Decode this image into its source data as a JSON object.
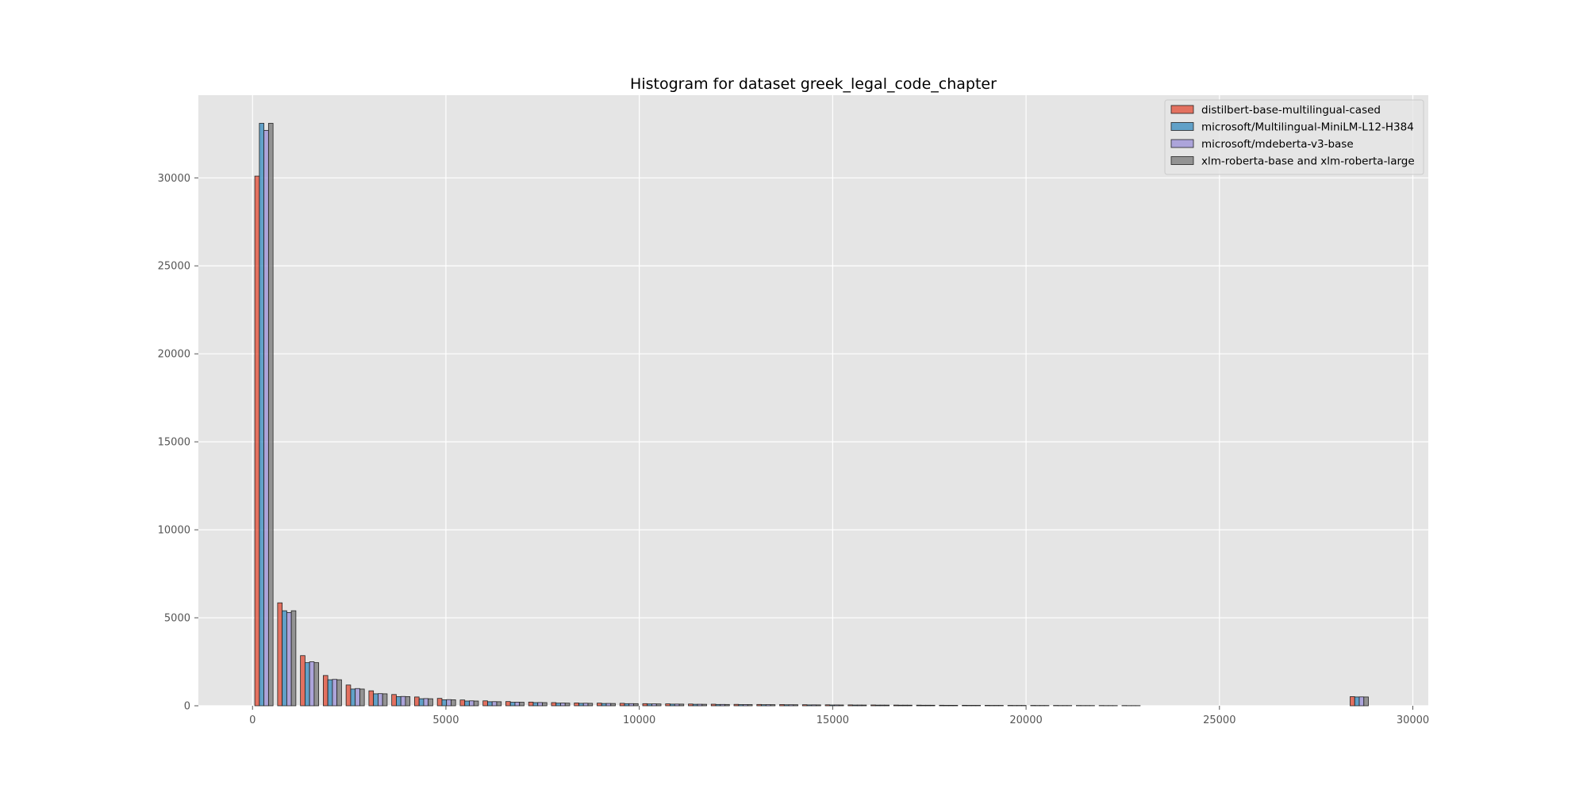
{
  "chart_data": {
    "type": "bar",
    "title": "Histogram for dataset greek_legal_code_chapter",
    "xlabel": "",
    "ylabel": "",
    "xlim": [
      -1400,
      30400
    ],
    "ylim": [
      0,
      34700
    ],
    "x_ticks": [
      0,
      5000,
      10000,
      15000,
      20000,
      25000,
      30000
    ],
    "y_ticks": [
      0,
      5000,
      10000,
      15000,
      20000,
      25000,
      30000
    ],
    "grid": true,
    "legend_position": "top-right",
    "bin_width": 590,
    "bin_starts": [
      0,
      590,
      1180,
      1770,
      2360,
      2950,
      3540,
      4130,
      4720,
      5310,
      5900,
      6490,
      7080,
      7670,
      8260,
      8850,
      9440,
      10030,
      10620,
      11210,
      11800,
      12390,
      12980,
      13570,
      14160,
      14750,
      15340,
      15930,
      16520,
      17110,
      17700,
      18290,
      18880,
      19470,
      20060,
      20650,
      21240,
      21830,
      22420,
      28320
    ],
    "series": [
      {
        "name": "distilbert-base-multilingual-cased",
        "color": "#E24A33",
        "values": [
          30100,
          5850,
          2850,
          1720,
          1180,
          850,
          640,
          500,
          420,
          330,
          280,
          240,
          210,
          180,
          160,
          150,
          140,
          120,
          110,
          100,
          90,
          80,
          75,
          70,
          60,
          55,
          50,
          45,
          40,
          35,
          30,
          28,
          25,
          22,
          20,
          18,
          16,
          14,
          12,
          520
        ]
      },
      {
        "name": "microsoft/Multilingual-MiniLM-L12-H384",
        "color": "#348ABD",
        "values": [
          33100,
          5400,
          2450,
          1480,
          950,
          680,
          520,
          400,
          340,
          270,
          230,
          200,
          180,
          150,
          140,
          130,
          120,
          105,
          95,
          85,
          75,
          68,
          62,
          58,
          50,
          45,
          42,
          38,
          34,
          30,
          26,
          24,
          21,
          18,
          16,
          14,
          12,
          10,
          8,
          500
        ]
      },
      {
        "name": "microsoft/mdeberta-v3-base",
        "color": "#988ED5",
        "values": [
          32700,
          5300,
          2500,
          1500,
          980,
          690,
          530,
          410,
          350,
          280,
          235,
          205,
          185,
          155,
          145,
          133,
          122,
          108,
          97,
          87,
          77,
          70,
          64,
          59,
          52,
          47,
          43,
          39,
          35,
          31,
          27,
          25,
          22,
          19,
          17,
          15,
          13,
          11,
          9,
          505
        ]
      },
      {
        "name": "xlm-roberta-base and xlm-roberta-large",
        "color": "#777777",
        "values": [
          33100,
          5400,
          2450,
          1480,
          950,
          680,
          520,
          400,
          340,
          270,
          230,
          200,
          180,
          150,
          140,
          130,
          120,
          105,
          95,
          85,
          75,
          68,
          62,
          58,
          50,
          45,
          42,
          38,
          34,
          30,
          26,
          24,
          21,
          18,
          16,
          14,
          12,
          10,
          8,
          500
        ]
      }
    ]
  }
}
